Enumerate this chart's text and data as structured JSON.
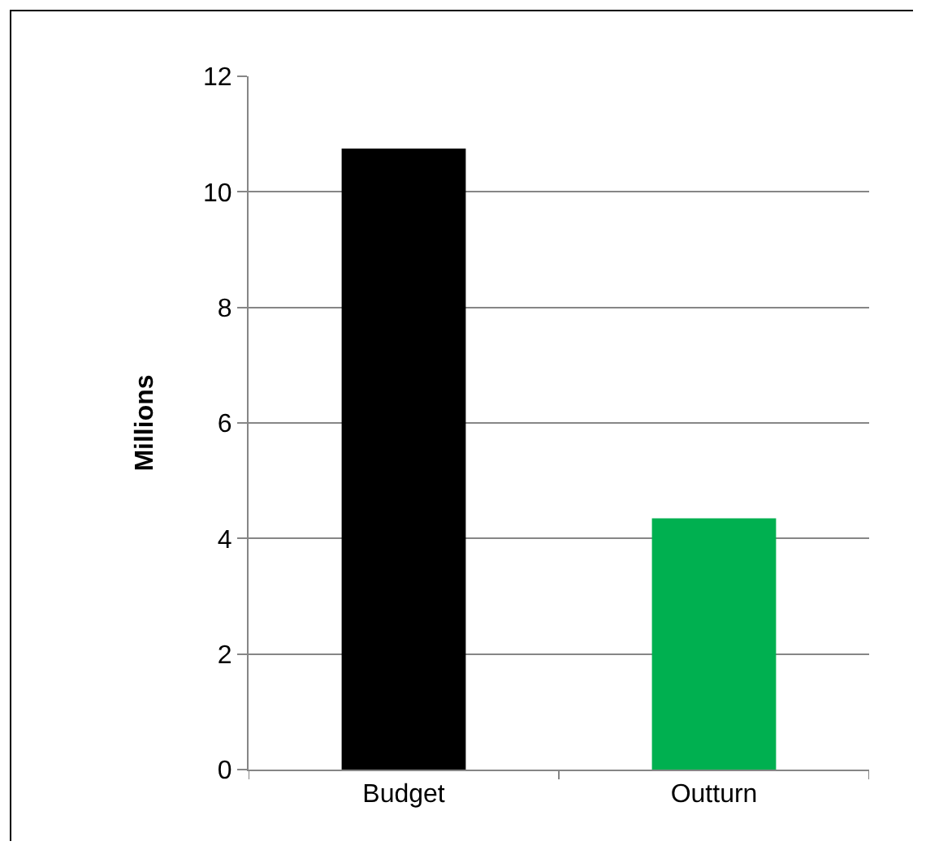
{
  "chart_data": {
    "type": "bar",
    "ylabel": "Millions",
    "categories": [
      "Budget",
      "Outturn"
    ],
    "values": [
      10.75,
      4.35
    ],
    "colors": [
      "#000000",
      "#00b050"
    ],
    "ylim": [
      0,
      12
    ],
    "yticks": [
      0,
      2,
      4,
      6,
      8,
      10,
      12
    ],
    "grid": "y"
  }
}
